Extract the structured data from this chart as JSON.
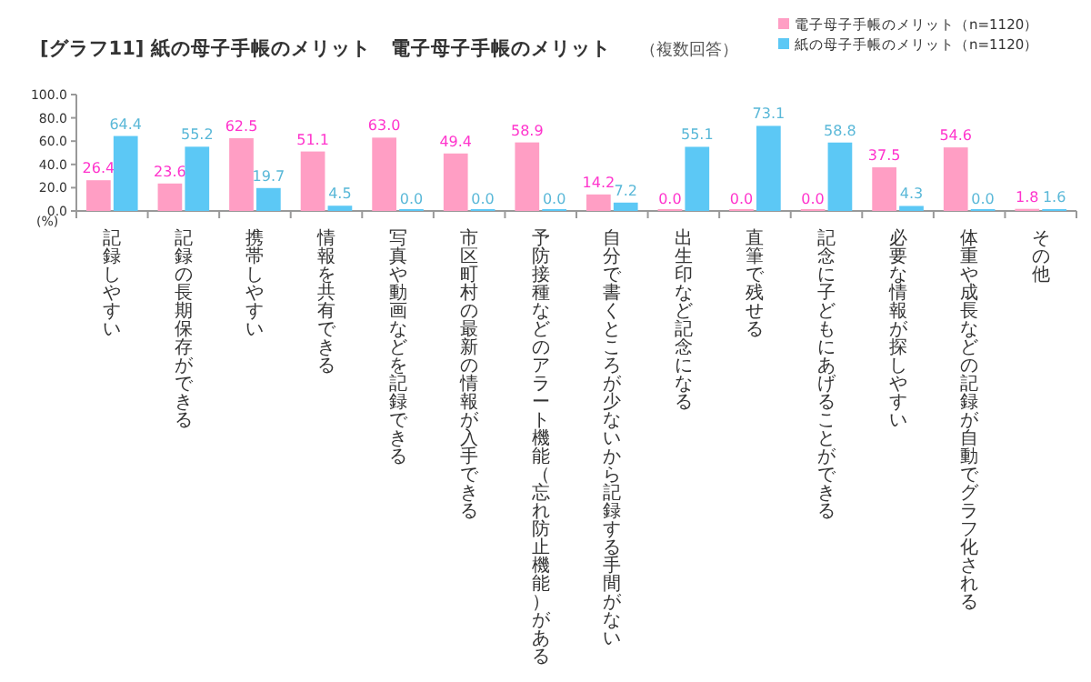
{
  "chart_data": {
    "type": "bar",
    "title": "[グラフ11] 紙の母子手帳のメリット　電子母子手帳のメリット",
    "subtitle": "（複数回答）",
    "ylabel": "(%)",
    "categories": [
      "記録しやすい",
      "記録の長期保存ができる",
      "携帯しやすい",
      "情報を共有できる",
      "写真や動画などを記録できる",
      "市区町村の最新の情報が入手できる",
      "予防接種などのアラート機能（忘れ防止機能）がある",
      "自分で書くところが少ないから記録する手間がない",
      "出生印など記念になる",
      "直筆で残せる",
      "記念に子どもにあげることができる",
      "必要な情報が探しやすい",
      "体重や成長などの記録が自動でグラフ化される",
      "その他"
    ],
    "series": [
      {
        "name": "電子母子手帳のメリット（n=1120）",
        "color": "#ff9ec4",
        "values": [
          26.4,
          23.6,
          62.5,
          51.1,
          63.0,
          49.4,
          58.9,
          14.2,
          0.0,
          0.0,
          0.0,
          37.5,
          54.6,
          1.8
        ],
        "value_labels": [
          "26.4",
          "23.6",
          "62.5",
          "51.1",
          "63.0",
          "49.4",
          "58.9",
          "14.2",
          "0.0",
          "0.0",
          "0.0",
          "37.5",
          "54.6",
          "1.8"
        ]
      },
      {
        "name": "紙の母子手帳のメリット（n=1120）",
        "color": "#5cc8f5",
        "values": [
          64.4,
          55.2,
          19.7,
          4.5,
          0.0,
          0.0,
          0.0,
          7.2,
          55.1,
          73.1,
          58.8,
          4.3,
          0.0,
          1.6
        ],
        "value_labels": [
          "64.4",
          "55.2",
          "19.7",
          "4.5",
          "0.0",
          "0.0",
          "0.0",
          "7.2",
          "55.1",
          "73.1",
          "58.8",
          "4.3",
          "0.0",
          "1.6"
        ]
      }
    ],
    "ylim": [
      0,
      100
    ],
    "yticks": [
      {
        "value": 0,
        "label": "0.0"
      },
      {
        "value": 20,
        "label": "20.0"
      },
      {
        "value": 40,
        "label": "40.0"
      },
      {
        "value": 60,
        "label": "60.0"
      },
      {
        "value": 80,
        "label": "80.0"
      },
      {
        "value": 100,
        "label": "100.0"
      }
    ],
    "legend": "top right",
    "grid": false
  }
}
